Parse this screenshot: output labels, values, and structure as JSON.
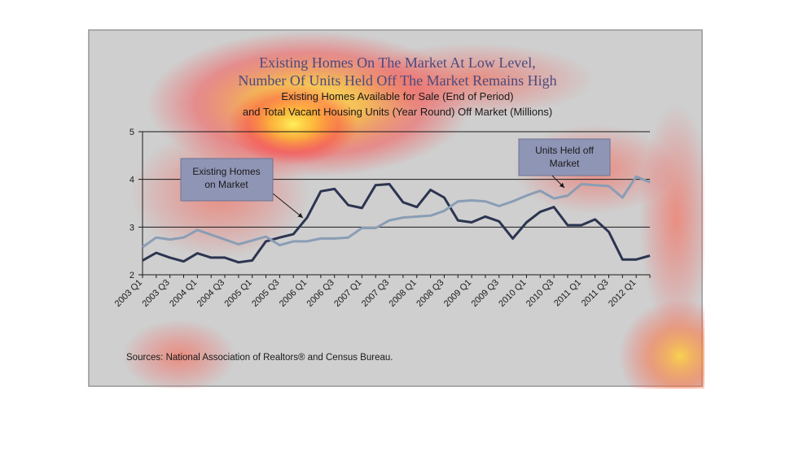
{
  "chart_data": {
    "type": "line",
    "title_line1": "Existing Homes On The Market At Low Level,",
    "title_line2": "Number Of Units Held Off The Market Remains High",
    "subtitle_line1": "Existing Homes Available for Sale (End of Period)",
    "subtitle_line2": "and Total Vacant Housing Units (Year Round) Off Market (Millions)",
    "source": "Sources: National Association of Realtors® and Census Bureau.",
    "ylim": [
      2,
      5
    ],
    "yticks": [
      "2",
      "3",
      "4",
      "5"
    ],
    "grid": true,
    "x": [
      "2003 Q1",
      "2003 Q2",
      "2003 Q3",
      "2003 Q4",
      "2004 Q1",
      "2004 Q2",
      "2004 Q3",
      "2004 Q4",
      "2005 Q1",
      "2005 Q2",
      "2005 Q3",
      "2005 Q4",
      "2006 Q1",
      "2006 Q2",
      "2006 Q3",
      "2006 Q4",
      "2007 Q1",
      "2007 Q2",
      "2007 Q3",
      "2007 Q4",
      "2008 Q1",
      "2008 Q2",
      "2008 Q3",
      "2008 Q4",
      "2009 Q1",
      "2009 Q2",
      "2009 Q3",
      "2009 Q4",
      "2010 Q1",
      "2010 Q2",
      "2010 Q3",
      "2010 Q4",
      "2011 Q1",
      "2011 Q2",
      "2011 Q3",
      "2011 Q4",
      "2012 Q1",
      "2012 Q2"
    ],
    "xtick_labels": [
      "2003 Q1",
      "2003 Q3",
      "2004 Q1",
      "2004 Q3",
      "2005 Q1",
      "2005 Q3",
      "2006 Q1",
      "2006 Q3",
      "2007 Q1",
      "2007 Q3",
      "2008 Q1",
      "2008 Q3",
      "2009 Q1",
      "2009 Q3",
      "2010 Q1",
      "2010 Q3",
      "2011 Q1",
      "2011 Q3",
      "2012 Q1"
    ],
    "series": [
      {
        "name": "Existing Homes on Market",
        "color": "#2b3550",
        "values": [
          2.3,
          2.46,
          2.36,
          2.28,
          2.45,
          2.36,
          2.36,
          2.26,
          2.3,
          2.7,
          2.78,
          2.85,
          3.2,
          3.75,
          3.8,
          3.46,
          3.4,
          3.88,
          3.9,
          3.52,
          3.42,
          3.78,
          3.62,
          3.14,
          3.1,
          3.22,
          3.12,
          2.76,
          3.1,
          3.32,
          3.42,
          3.04,
          3.04,
          3.16,
          2.9,
          2.32,
          2.32,
          2.4
        ]
      },
      {
        "name": "Units Held off Market",
        "color": "#8a9db5",
        "values": [
          2.58,
          2.78,
          2.74,
          2.78,
          2.94,
          2.84,
          2.74,
          2.64,
          2.72,
          2.8,
          2.62,
          2.7,
          2.7,
          2.76,
          2.76,
          2.78,
          2.98,
          2.98,
          3.14,
          3.2,
          3.22,
          3.24,
          3.34,
          3.54,
          3.56,
          3.54,
          3.44,
          3.54,
          3.66,
          3.76,
          3.6,
          3.66,
          3.9,
          3.88,
          3.86,
          3.62,
          4.06,
          3.94
        ]
      }
    ]
  },
  "callouts": {
    "left_line1": "Existing Homes",
    "left_line2": "on Market",
    "right_line1": "Units Held off",
    "right_line2": "Market"
  },
  "colors": {
    "frame_bg": "#cfcfcf",
    "callout_bg": "#8f95b5",
    "title": "#4a4a7e"
  }
}
